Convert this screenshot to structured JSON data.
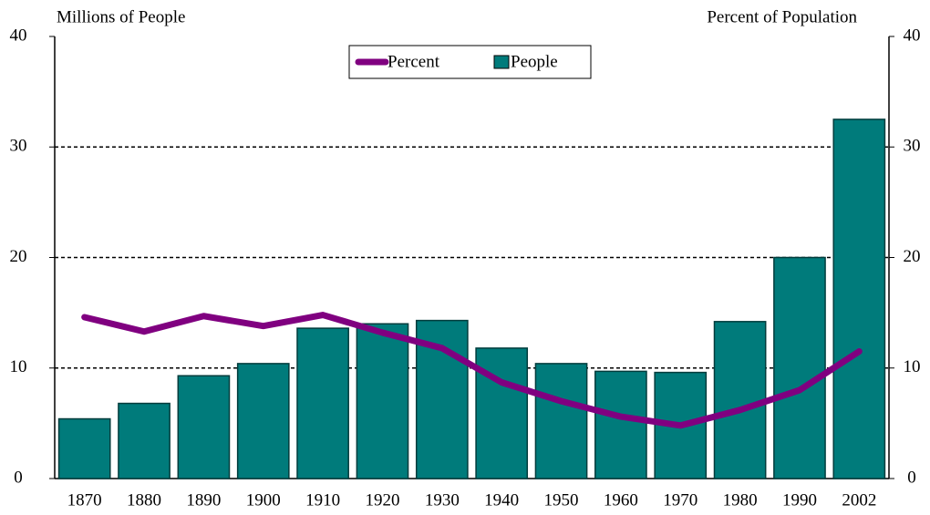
{
  "chart_data": {
    "type": "combo",
    "y_label": "Millions of People",
    "y2_label": "Percent of Population",
    "categories": [
      "1870",
      "1880",
      "1890",
      "1900",
      "1910",
      "1920",
      "1930",
      "1940",
      "1950",
      "1960",
      "1970",
      "1980",
      "1990",
      "2002"
    ],
    "series": [
      {
        "name": "Percent",
        "type": "line",
        "axis": "y2",
        "color": "#800080",
        "values": [
          14.6,
          13.3,
          14.7,
          13.8,
          14.8,
          13.2,
          11.8,
          8.7,
          7.0,
          5.6,
          4.8,
          6.2,
          8.0,
          11.5
        ]
      },
      {
        "name": "People",
        "type": "bar",
        "color": "#007b7b",
        "values": [
          5.4,
          6.8,
          9.3,
          10.4,
          13.6,
          14.0,
          14.3,
          11.8,
          10.4,
          9.7,
          9.6,
          14.2,
          20.0,
          32.5
        ]
      }
    ],
    "ylim": [
      0,
      40
    ],
    "yticks": [
      0,
      10,
      20,
      30,
      40
    ],
    "y2lim": [
      0,
      40
    ],
    "y2ticks": [
      0,
      10,
      20,
      30,
      40
    ],
    "grid": true,
    "legend": "top"
  }
}
